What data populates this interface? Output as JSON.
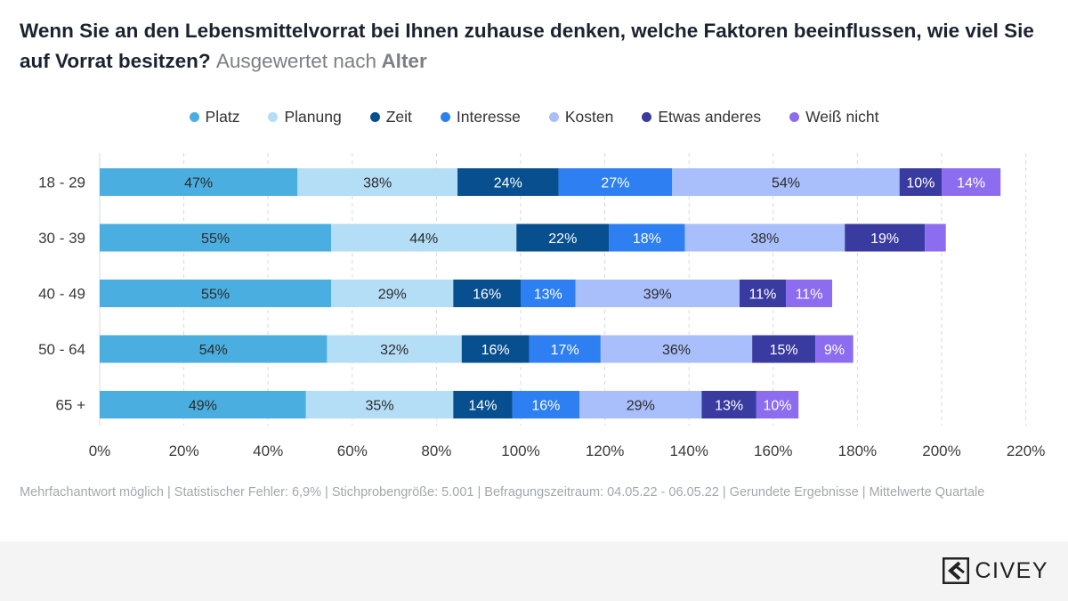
{
  "title": {
    "main": "Wenn Sie an den Lebensmittelvorrat bei Ihnen zuhause denken, welche Faktoren beeinflussen, wie viel Sie auf Vorrat besitzen?",
    "sub": "Ausgewertet nach",
    "sub_bold": "Alter"
  },
  "footnote": "Mehrfachantwort möglich | Statistischer Fehler: 6,9% | Stichprobengröße: 5.001 | Befragungszeitraum: 04.05.22 - 06.05.22 | Gerundete Ergebnisse | Mittelwerte Quartale",
  "brand": {
    "name": "CIVEY",
    "icon": "civey-logo-icon"
  },
  "chart_data": {
    "type": "bar",
    "orientation": "horizontal",
    "stacked": true,
    "categories": [
      "18 - 29",
      "30 - 39",
      "40 - 49",
      "50 - 64",
      "65 +"
    ],
    "series": [
      {
        "name": "Platz",
        "color": "#4aaee0",
        "label_color": "#2b2b2b",
        "values": [
          47,
          55,
          55,
          54,
          49
        ]
      },
      {
        "name": "Planung",
        "color": "#b4ddf6",
        "label_color": "#2b2b2b",
        "values": [
          38,
          44,
          29,
          32,
          35
        ]
      },
      {
        "name": "Zeit",
        "color": "#074f8f",
        "label_color": "#ffffff",
        "values": [
          24,
          22,
          16,
          16,
          14
        ]
      },
      {
        "name": "Interesse",
        "color": "#2d7ff2",
        "label_color": "#ffffff",
        "values": [
          27,
          18,
          13,
          17,
          16
        ]
      },
      {
        "name": "Kosten",
        "color": "#a9bffb",
        "label_color": "#2b2b2b",
        "values": [
          54,
          38,
          39,
          36,
          29
        ]
      },
      {
        "name": "Etwas anderes",
        "color": "#3a3ba0",
        "label_color": "#ffffff",
        "values": [
          10,
          19,
          11,
          15,
          13
        ]
      },
      {
        "name": "Weiß nicht",
        "color": "#8c6df0",
        "label_color": "#ffffff",
        "values": [
          14,
          5,
          11,
          9,
          10
        ]
      }
    ],
    "data_labels": [
      [
        "47%",
        "55%",
        "55%",
        "54%",
        "49%"
      ],
      [
        "38%",
        "44%",
        "29%",
        "32%",
        "35%"
      ],
      [
        "24%",
        "22%",
        "16%",
        "16%",
        "14%"
      ],
      [
        "27%",
        "18%",
        "13%",
        "17%",
        "16%"
      ],
      [
        "54%",
        "38%",
        "39%",
        "36%",
        "29%"
      ],
      [
        "10%",
        "19%",
        "11%",
        "15%",
        "13%"
      ],
      [
        "14%",
        "",
        "11%",
        "9%",
        "10%"
      ]
    ],
    "x_ticks": [
      "0%",
      "20%",
      "40%",
      "60%",
      "80%",
      "100%",
      "120%",
      "140%",
      "160%",
      "180%",
      "200%",
      "220%"
    ],
    "xlim": [
      0,
      220
    ],
    "xlabel": "",
    "ylabel": "",
    "grid": "vertical dashed",
    "legend_position": "top"
  }
}
